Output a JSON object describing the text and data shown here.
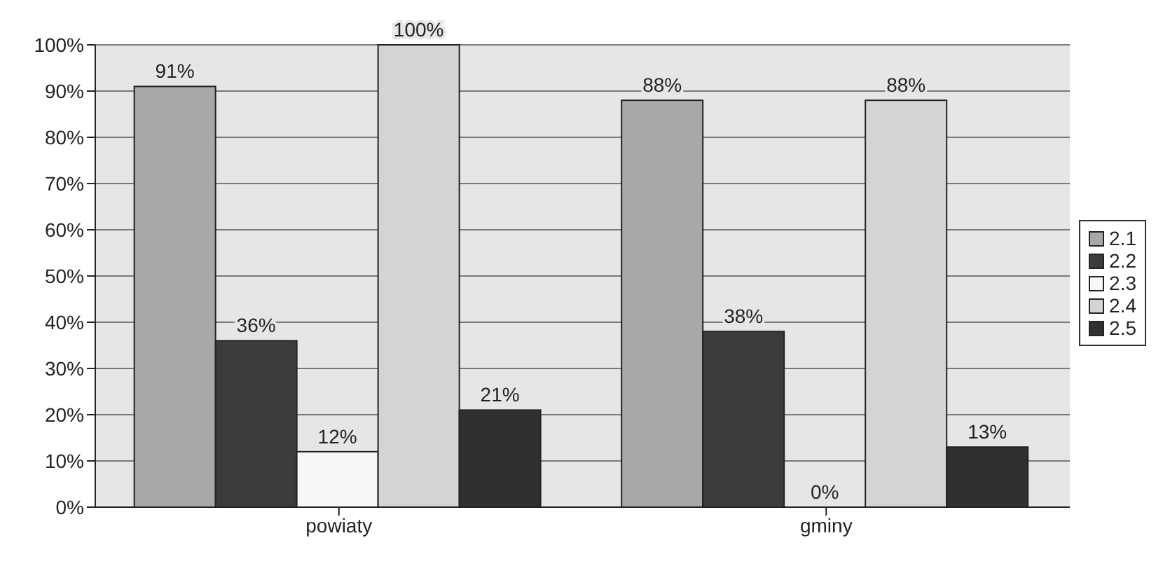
{
  "chart_data": {
    "type": "bar",
    "categories": [
      "powiaty",
      "gminy"
    ],
    "series": [
      {
        "name": "2.1",
        "color": "#a8a8a8",
        "values": [
          91,
          88
        ],
        "value_labels": [
          "91%",
          "88%"
        ]
      },
      {
        "name": "2.2",
        "color": "#3c3c3c",
        "values": [
          36,
          38
        ],
        "value_labels": [
          "36%",
          "38%"
        ]
      },
      {
        "name": "2.3",
        "color": "#f8f8f8",
        "values": [
          12,
          0
        ],
        "value_labels": [
          "12%",
          "0%"
        ]
      },
      {
        "name": "2.4",
        "color": "#d4d4d4",
        "values": [
          100,
          88
        ],
        "value_labels": [
          "100%",
          "88%"
        ]
      },
      {
        "name": "2.5",
        "color": "#303030",
        "values": [
          21,
          13
        ],
        "value_labels": [
          "21%",
          "13%"
        ]
      }
    ],
    "ylim": [
      0,
      100
    ],
    "yticks": [
      {
        "value": 0,
        "label": "0%"
      },
      {
        "value": 10,
        "label": "10%"
      },
      {
        "value": 20,
        "label": "20%"
      },
      {
        "value": 30,
        "label": "30%"
      },
      {
        "value": 40,
        "label": "40%"
      },
      {
        "value": 50,
        "label": "50%"
      },
      {
        "value": 60,
        "label": "60%"
      },
      {
        "value": 70,
        "label": "70%"
      },
      {
        "value": 80,
        "label": "80%"
      },
      {
        "value": 90,
        "label": "90%"
      },
      {
        "value": 100,
        "label": "100%"
      }
    ],
    "grid": "y",
    "legend": "right"
  }
}
